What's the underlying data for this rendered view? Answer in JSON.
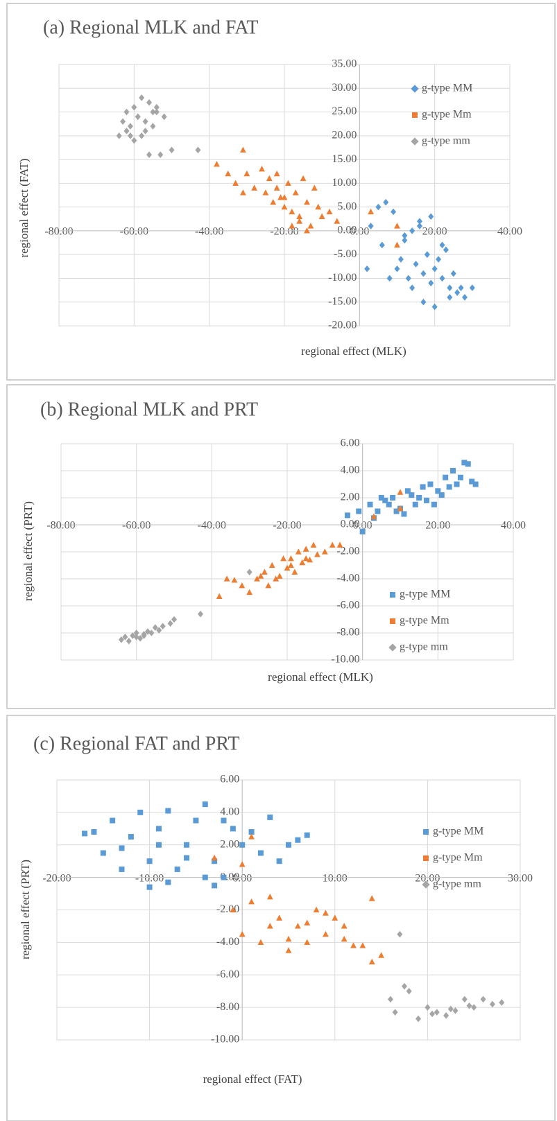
{
  "chart_data": [
    {
      "type": "scatter",
      "title": "(a) Regional MLK and FAT",
      "x_label": "regional effect (MLK)",
      "y_label": "regional effect (FAT)",
      "legend": "upper right",
      "grid": true,
      "xlim": [
        -80,
        40
      ],
      "ylim": [
        -20,
        35
      ],
      "xticks": [
        {
          "value": -80,
          "label": "-80.00"
        },
        {
          "value": -60,
          "label": "-60.00"
        },
        {
          "value": -40,
          "label": "-40.00"
        },
        {
          "value": -20,
          "label": "-20.00"
        },
        {
          "value": 0,
          "label": "0.00"
        },
        {
          "value": 20,
          "label": "20.00"
        },
        {
          "value": 40,
          "label": "40.00"
        }
      ],
      "yticks": [
        {
          "value": 35,
          "label": "35.00"
        },
        {
          "value": 30,
          "label": "30.00"
        },
        {
          "value": 25,
          "label": "25.00"
        },
        {
          "value": 20,
          "label": "20.00"
        },
        {
          "value": 15,
          "label": "15.00"
        },
        {
          "value": 10,
          "label": "10.00"
        },
        {
          "value": 5,
          "label": "5.00"
        },
        {
          "value": 0,
          "label": "0.00"
        },
        {
          "value": -5,
          "label": "-5.00"
        },
        {
          "value": -10,
          "label": "-10.00"
        },
        {
          "value": -15,
          "label": "-15.00"
        },
        {
          "value": -20,
          "label": "-20.00"
        }
      ],
      "series": [
        {
          "name": "g-type MM",
          "color": "#5b9bd5",
          "marker": "diamond",
          "x": [
            5,
            7,
            9,
            3,
            6,
            12,
            14,
            16,
            18,
            20,
            22,
            24,
            26,
            28,
            15,
            17,
            19,
            21,
            23,
            13,
            11,
            25,
            27,
            30,
            10,
            8,
            2,
            17,
            20,
            22,
            14,
            18,
            24,
            16,
            12,
            19
          ],
          "y": [
            5,
            6,
            4,
            1,
            -3,
            -2,
            0,
            1,
            -5,
            -8,
            -10,
            -12,
            -13,
            -14,
            -7,
            -9,
            -11,
            -6,
            -4,
            -10,
            -6,
            -9,
            -12,
            -12,
            -8,
            -10,
            -8,
            -15,
            -16,
            -3,
            -12,
            -5,
            -14,
            2,
            -1,
            3
          ]
        },
        {
          "name": "g-type Mm",
          "color": "#ed7d31",
          "marker": "triangle",
          "x": [
            -38,
            -35,
            -33,
            -31,
            -30,
            -28,
            -26,
            -25,
            -24,
            -23,
            -22,
            -21,
            -20,
            -19,
            -18,
            -17,
            -16,
            -15,
            -14,
            -13,
            -12,
            -11,
            -10,
            -8,
            -6,
            -20,
            -18,
            -16,
            -22,
            -14,
            3,
            10,
            10,
            -31
          ],
          "y": [
            14,
            12,
            10,
            17,
            12,
            9,
            13,
            8,
            11,
            6,
            9,
            7,
            5,
            10,
            4,
            8,
            2,
            11,
            6,
            1,
            9,
            5,
            3,
            4,
            2,
            7,
            1,
            3,
            12,
            0,
            4,
            1,
            -3,
            8
          ]
        },
        {
          "name": "g-type mm",
          "color": "#a5a5a5",
          "marker": "diamond",
          "x": [
            -64,
            -63,
            -62,
            -61,
            -60,
            -59,
            -58,
            -57,
            -56,
            -55,
            -54,
            -53,
            -52,
            -50,
            -43,
            -62,
            -60,
            -58,
            -56,
            -55,
            -57,
            -59,
            -61,
            -54
          ],
          "y": [
            20,
            23,
            25,
            22,
            26,
            24,
            28,
            21,
            27,
            25,
            26,
            16,
            24,
            17,
            17,
            21,
            19,
            20,
            16,
            22,
            23,
            24,
            20,
            25
          ]
        }
      ]
    },
    {
      "type": "scatter",
      "title": "(b) Regional MLK and PRT",
      "x_label": "regional effect (MLK)",
      "y_label": "regional effect (PRT)",
      "legend": "lower right",
      "grid": true,
      "xlim": [
        -80,
        40
      ],
      "ylim": [
        -10,
        6
      ],
      "xticks": [
        {
          "value": -80,
          "label": "-80.00"
        },
        {
          "value": -60,
          "label": "-60.00"
        },
        {
          "value": -40,
          "label": "-40.00"
        },
        {
          "value": -20,
          "label": "-20.00"
        },
        {
          "value": 0,
          "label": "0.00"
        },
        {
          "value": 20,
          "label": "20.00"
        },
        {
          "value": 40,
          "label": "40.00"
        }
      ],
      "yticks": [
        {
          "value": 6,
          "label": "6.00"
        },
        {
          "value": 4,
          "label": "4.00"
        },
        {
          "value": 2,
          "label": "2.00"
        },
        {
          "value": 0,
          "label": "0.00"
        },
        {
          "value": -2,
          "label": "-2.00"
        },
        {
          "value": -4,
          "label": "-4.00"
        },
        {
          "value": -6,
          "label": "-6.00"
        },
        {
          "value": -8,
          "label": "-8.00"
        },
        {
          "value": -10,
          "label": "-10.00"
        }
      ],
      "series": [
        {
          "name": "g-type MM",
          "color": "#5b9bd5",
          "marker": "square",
          "x": [
            -4,
            0,
            2,
            4,
            5,
            6,
            8,
            10,
            12,
            14,
            15,
            16,
            18,
            19,
            20,
            22,
            23,
            24,
            25,
            26,
            27,
            28,
            30,
            3,
            9,
            13,
            17,
            21,
            11,
            7,
            29,
            -1
          ],
          "y": [
            0.7,
            -0.5,
            1.5,
            1,
            2,
            1.8,
            2,
            1.2,
            2.5,
            1.5,
            2,
            2.8,
            3,
            1.5,
            2.5,
            3.5,
            2.8,
            4,
            3,
            3.5,
            4.6,
            4.5,
            3,
            0.5,
            1,
            2.2,
            1.8,
            2.2,
            0.8,
            1.5,
            3.2,
            1
          ]
        },
        {
          "name": "g-type Mm",
          "color": "#ed7d31",
          "marker": "triangle",
          "x": [
            -38,
            -36,
            -34,
            -32,
            -30,
            -28,
            -26,
            -25,
            -24,
            -22,
            -21,
            -20,
            -19,
            -18,
            -17,
            -16,
            -15,
            -14,
            -13,
            -12,
            -10,
            -8,
            -6,
            -27,
            -23,
            -19,
            -15,
            10,
            10,
            3
          ],
          "y": [
            -5.3,
            -4,
            -4.1,
            -4.5,
            -5,
            -4,
            -3.5,
            -4.5,
            -3,
            -3.8,
            -2.5,
            -3.2,
            -2.5,
            -3.5,
            -2,
            -2.8,
            -1.8,
            -2.6,
            -1.5,
            -2.2,
            -2,
            -1.5,
            -1.5,
            -3.8,
            -4,
            -3,
            -2.5,
            2.4,
            1.2,
            0.6
          ]
        },
        {
          "name": "g-type mm",
          "color": "#a5a5a5",
          "marker": "diamond",
          "x": [
            -64,
            -63,
            -62,
            -61,
            -60,
            -59,
            -58,
            -57,
            -56,
            -55,
            -54,
            -53,
            -51,
            -50,
            -43,
            -30,
            -60,
            -58
          ],
          "y": [
            -8.5,
            -8.3,
            -8.6,
            -8.2,
            -8,
            -8.4,
            -8.1,
            -7.9,
            -8,
            -7.6,
            -7.8,
            -7.5,
            -7.3,
            -7,
            -6.6,
            -3.5,
            -8.3,
            -8.2
          ]
        }
      ]
    },
    {
      "type": "scatter",
      "title": "(c) Regional FAT and PRT",
      "x_label": "regional effect (FAT)",
      "y_label": "regional effect (PRT)",
      "legend": "center right",
      "grid": true,
      "xlim": [
        -20,
        30
      ],
      "ylim": [
        -10,
        6
      ],
      "xticks": [
        {
          "value": -20,
          "label": "-20.00"
        },
        {
          "value": -10,
          "label": "-10.00"
        },
        {
          "value": 0,
          "label": "0.00"
        },
        {
          "value": 10,
          "label": "10.00"
        },
        {
          "value": 20,
          "label": "20.00"
        },
        {
          "value": 30,
          "label": "30.00"
        }
      ],
      "yticks": [
        {
          "value": 6,
          "label": "6.00"
        },
        {
          "value": 4,
          "label": "4.00"
        },
        {
          "value": 2,
          "label": "2.00"
        },
        {
          "value": 0,
          "label": "0.00"
        },
        {
          "value": -2,
          "label": "-2.00"
        },
        {
          "value": -4,
          "label": "-4.00"
        },
        {
          "value": -6,
          "label": "-6.00"
        },
        {
          "value": -8,
          "label": "-8.00"
        },
        {
          "value": -10,
          "label": "-10.00"
        }
      ],
      "series": [
        {
          "name": "g-type MM",
          "color": "#5b9bd5",
          "marker": "square",
          "x": [
            -17,
            -16,
            -15,
            -14,
            -13,
            -12,
            -11,
            -10,
            -9,
            -8,
            -7,
            -6,
            -5,
            -4,
            -3,
            -2,
            -1,
            0,
            1,
            2,
            3,
            4,
            5,
            6,
            7,
            -10,
            -8,
            -3,
            -2,
            -9,
            -13,
            -6,
            -4
          ],
          "y": [
            2.7,
            2.8,
            1.5,
            3.5,
            0.5,
            2.5,
            4,
            1,
            3,
            4.1,
            0.5,
            2,
            3.5,
            4.5,
            1,
            0,
            3,
            2,
            2.8,
            1.5,
            3.7,
            1,
            2,
            2.3,
            2.6,
            -0.6,
            -0.3,
            -0.5,
            3.5,
            2,
            1.8,
            1.2,
            0
          ]
        },
        {
          "name": "g-type Mm",
          "color": "#ed7d31",
          "marker": "triangle",
          "x": [
            -1,
            0,
            1,
            2,
            3,
            4,
            5,
            6,
            7,
            8,
            9,
            10,
            11,
            12,
            13,
            14,
            15,
            3,
            5,
            7,
            9,
            11,
            -3,
            0,
            1,
            14
          ],
          "y": [
            -2,
            -3.5,
            -1.5,
            -4,
            -3,
            -2.5,
            -4.5,
            -3,
            -4,
            -2,
            -3.5,
            -2.5,
            -3,
            -4.2,
            -4.2,
            -1.3,
            -4.8,
            -1.2,
            -3.8,
            -2.8,
            -2.2,
            -3.8,
            1.2,
            0.8,
            2.5,
            -5.2
          ]
        },
        {
          "name": "g-type mm",
          "color": "#a5a5a5",
          "marker": "diamond",
          "x": [
            16,
            16.5,
            17,
            17.5,
            18,
            19,
            20,
            21,
            22,
            23,
            24,
            25,
            26,
            27,
            28,
            20.5,
            22.5,
            24.5
          ],
          "y": [
            -7.5,
            -8.3,
            -3.5,
            -6.7,
            -7,
            -8.7,
            -8,
            -8.3,
            -8.5,
            -8.2,
            -7.5,
            -8,
            -7.5,
            -7.8,
            -7.7,
            -8.4,
            -8.1,
            -7.9
          ]
        }
      ]
    }
  ]
}
